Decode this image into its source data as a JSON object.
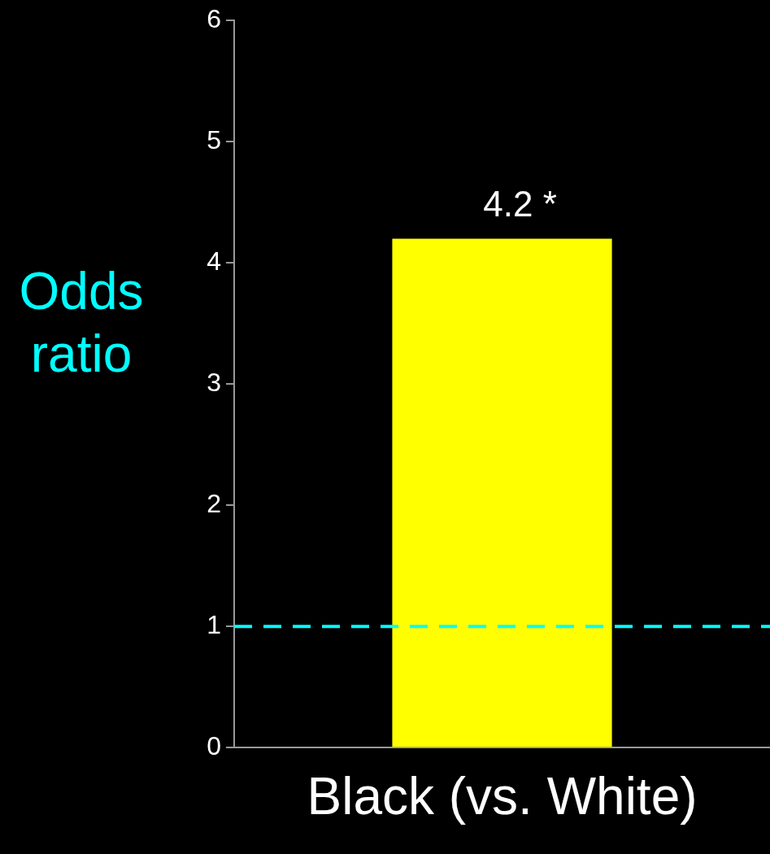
{
  "chart_data": {
    "type": "bar",
    "ylabel": "Odds ratio",
    "categories": [
      "Black (vs. White)"
    ],
    "values": [
      4.2
    ],
    "color": "#ffff00",
    "value_labels": [
      "4.2 *"
    ],
    "ylim": [
      0,
      6
    ],
    "yticks": [
      0,
      1,
      2,
      3,
      4,
      5,
      6
    ],
    "grid": false,
    "legend": false,
    "ref_lines": [
      {
        "axis": "y",
        "value": 1,
        "color": "#00ffff",
        "line_style": "dashed"
      }
    ]
  }
}
